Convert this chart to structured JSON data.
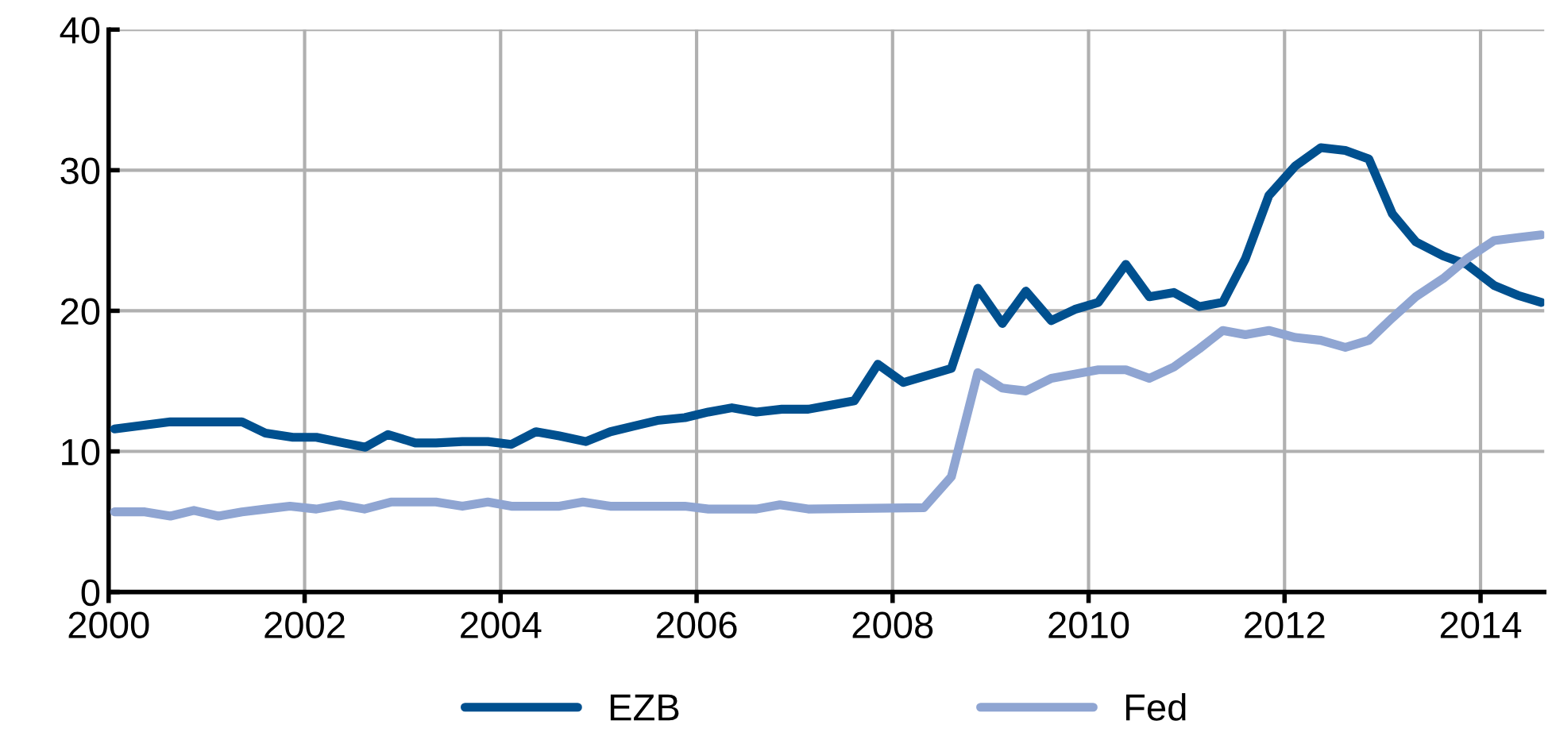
{
  "chart_data": {
    "type": "line",
    "xlim": [
      2000,
      2014.65
    ],
    "xticks": [
      2000,
      2002,
      2004,
      2006,
      2008,
      2010,
      2012,
      2014
    ],
    "ylim": [
      0,
      40
    ],
    "yticks": [
      0,
      10,
      20,
      30,
      40
    ],
    "grid": true,
    "legend": "bottom",
    "line_style": "solid",
    "marker": "none",
    "series": [
      {
        "name": "EZB",
        "color": "#00508f",
        "x": [
          2000.06,
          2000.63,
          2001.36,
          2001.6,
          2001.88,
          2002.12,
          2002.4,
          2002.62,
          2002.85,
          2003.13,
          2003.34,
          2003.61,
          2003.87,
          2004.11,
          2004.36,
          2004.6,
          2004.87,
          2005.12,
          2005.36,
          2005.6,
          2005.88,
          2006.12,
          2006.36,
          2006.61,
          2006.87,
          2007.14,
          2007.38,
          2007.61,
          2007.85,
          2008.11,
          2008.6,
          2008.87,
          2009.12,
          2009.36,
          2009.62,
          2009.86,
          2010.1,
          2010.38,
          2010.62,
          2010.87,
          2011.13,
          2011.37,
          2011.6,
          2011.84,
          2012.11,
          2012.37,
          2012.62,
          2012.86,
          2013.1,
          2013.34,
          2013.62,
          2013.86,
          2014.14,
          2014.38,
          2014.62
        ],
        "values": [
          11.6,
          12.1,
          12.1,
          11.3,
          11.0,
          11.0,
          10.6,
          10.3,
          11.2,
          10.6,
          10.6,
          10.7,
          10.7,
          10.5,
          11.4,
          11.1,
          10.7,
          11.4,
          11.8,
          12.2,
          12.4,
          12.8,
          13.1,
          12.8,
          13.0,
          13.0,
          13.3,
          13.6,
          16.2,
          14.9,
          15.9,
          21.6,
          19.1,
          21.4,
          19.3,
          20.1,
          20.6,
          23.3,
          21.0,
          21.3,
          20.3,
          20.6,
          23.7,
          28.2,
          30.3,
          31.6,
          31.4,
          30.8,
          26.9,
          24.9,
          23.9,
          23.3,
          21.8,
          21.1,
          20.6
        ]
      },
      {
        "name": "Fed",
        "color": "#8fa5d2",
        "x": [
          2000.06,
          2000.37,
          2000.63,
          2000.87,
          2001.12,
          2001.36,
          2001.6,
          2001.85,
          2002.12,
          2002.36,
          2002.61,
          2002.88,
          2003.34,
          2003.61,
          2003.87,
          2004.11,
          2004.6,
          2004.84,
          2005.12,
          2005.88,
          2006.12,
          2006.61,
          2006.85,
          2007.14,
          2008.32,
          2008.6,
          2008.87,
          2009.12,
          2009.36,
          2009.62,
          2009.86,
          2010.1,
          2010.38,
          2010.62,
          2010.87,
          2011.13,
          2011.37,
          2011.6,
          2011.84,
          2012.11,
          2012.37,
          2012.62,
          2012.86,
          2013.1,
          2013.34,
          2013.62,
          2013.86,
          2014.14,
          2014.38,
          2014.62
        ],
        "values": [
          5.7,
          5.7,
          5.4,
          5.8,
          5.4,
          5.7,
          5.9,
          6.1,
          5.9,
          6.2,
          5.9,
          6.4,
          6.4,
          6.1,
          6.4,
          6.1,
          6.1,
          6.4,
          6.1,
          6.1,
          5.9,
          5.9,
          6.2,
          5.9,
          6.0,
          8.2,
          15.6,
          14.5,
          14.3,
          15.2,
          15.5,
          15.8,
          15.8,
          15.2,
          16.0,
          17.3,
          18.6,
          18.3,
          18.6,
          18.1,
          17.9,
          17.4,
          17.9,
          19.5,
          21.0,
          22.3,
          23.7,
          25.0,
          25.2,
          25.4
        ]
      }
    ]
  }
}
